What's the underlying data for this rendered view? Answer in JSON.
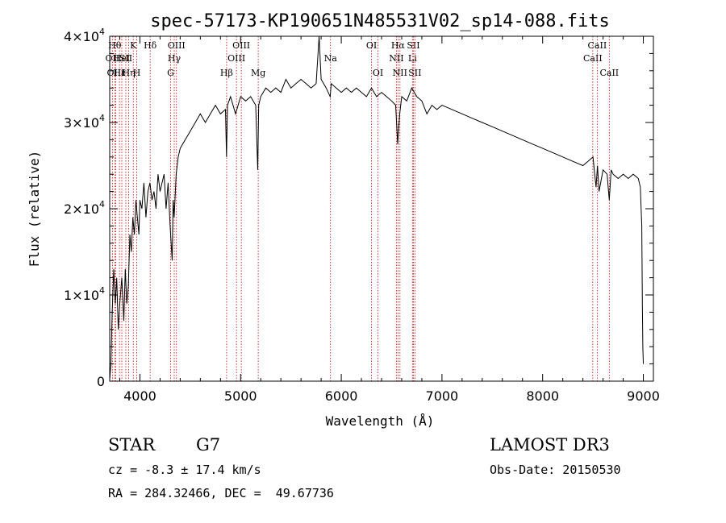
{
  "chart_data": {
    "type": "line",
    "title": "spec-57173-KP190651N485531V02_sp14-088.fits",
    "xlabel": "Wavelength (Å)",
    "ylabel": "Flux (relative)",
    "xlim": [
      3700,
      9100
    ],
    "ylim": [
      0,
      40000
    ],
    "x_ticks": [
      4000,
      5000,
      6000,
      7000,
      8000,
      9000
    ],
    "x_tick_labels": [
      "4000",
      "5000",
      "6000",
      "7000",
      "8000",
      "9000"
    ],
    "y_ticks": [
      0,
      10000,
      20000,
      30000,
      40000
    ],
    "y_tick_labels": [
      {
        "base": "0",
        "exp": ""
      },
      {
        "base": "1×10",
        "exp": "4"
      },
      {
        "base": "2×10",
        "exp": "4"
      },
      {
        "base": "3×10",
        "exp": "4"
      },
      {
        "base": "4×10",
        "exp": "4"
      }
    ],
    "grid": false,
    "line_color": "#000000",
    "marker_color": "#cc0000",
    "series": [
      {
        "name": "spectrum",
        "x": [
          3700,
          3712,
          3725,
          3740,
          3755,
          3770,
          3785,
          3800,
          3820,
          3840,
          3855,
          3870,
          3885,
          3900,
          3915,
          3930,
          3945,
          3960,
          3975,
          3990,
          4000,
          4020,
          4040,
          4060,
          4080,
          4100,
          4120,
          4140,
          4160,
          4180,
          4200,
          4220,
          4240,
          4260,
          4280,
          4300,
          4320,
          4330,
          4340,
          4360,
          4380,
          4400,
          4450,
          4500,
          4550,
          4600,
          4650,
          4700,
          4750,
          4800,
          4850,
          4860,
          4870,
          4900,
          4950,
          5000,
          5050,
          5100,
          5150,
          5170,
          5180,
          5200,
          5250,
          5300,
          5350,
          5400,
          5450,
          5500,
          5550,
          5600,
          5650,
          5700,
          5750,
          5780,
          5800,
          5850,
          5890,
          5900,
          5950,
          6000,
          6050,
          6100,
          6150,
          6200,
          6250,
          6300,
          6350,
          6400,
          6450,
          6500,
          6540,
          6560,
          6580,
          6600,
          6650,
          6700,
          6750,
          6800,
          6850,
          6900,
          6950,
          7000,
          7100,
          7200,
          7300,
          7400,
          7500,
          7600,
          7700,
          7800,
          7900,
          8000,
          8100,
          8200,
          8300,
          8400,
          8450,
          8500,
          8530,
          8545,
          8560,
          8600,
          8640,
          8662,
          8680,
          8700,
          8750,
          8800,
          8850,
          8900,
          8950,
          8970,
          8985,
          8990,
          8995,
          9000
        ],
        "y": [
          200,
          2000,
          8000,
          13000,
          9000,
          12000,
          6000,
          9000,
          12000,
          7000,
          13000,
          9000,
          11000,
          17000,
          15000,
          19000,
          17000,
          21000,
          19000,
          17000,
          21000,
          20000,
          23000,
          19000,
          22000,
          23000,
          21000,
          22000,
          20000,
          24000,
          22000,
          23000,
          24000,
          20000,
          23000,
          18000,
          14000,
          21000,
          19000,
          24000,
          26000,
          27000,
          28000,
          29000,
          30000,
          31000,
          30000,
          31000,
          32000,
          31000,
          31500,
          26000,
          32000,
          33000,
          31000,
          33000,
          32500,
          33000,
          32000,
          24500,
          32000,
          33000,
          34000,
          33500,
          34000,
          33500,
          35000,
          34000,
          34500,
          35000,
          34500,
          34000,
          34500,
          40000,
          35000,
          34000,
          33000,
          34500,
          34000,
          33500,
          34000,
          33500,
          34000,
          33500,
          33000,
          34000,
          33000,
          33500,
          33000,
          32500,
          32000,
          27500,
          31000,
          33000,
          32500,
          34000,
          33000,
          32500,
          31000,
          32000,
          31500,
          32000,
          31500,
          31000,
          30500,
          30000,
          29500,
          29000,
          28500,
          28000,
          27500,
          27000,
          26500,
          26000,
          25500,
          25000,
          25500,
          26000,
          22500,
          25000,
          22000,
          24500,
          24000,
          21000,
          24500,
          24000,
          23500,
          24000,
          23500,
          24000,
          23500,
          22500,
          18000,
          9000,
          4000,
          2000
        ]
      }
    ],
    "markers": [
      {
        "wl": 3727,
        "label": "OII",
        "row": 2
      },
      {
        "wl": 3750,
        "label": "Hθ",
        "row": 1
      },
      {
        "wl": 3760,
        "label": "OIII",
        "row": 3
      },
      {
        "wl": 3797,
        "label": "Hε",
        "row": 3
      },
      {
        "wl": 3820,
        "label": "HeI",
        "row": 2
      },
      {
        "wl": 3860,
        "label": "SII",
        "row": 2
      },
      {
        "wl": 3889,
        "label": "Hη",
        "row": 3
      },
      {
        "wl": 3934,
        "label": "K",
        "row": 1
      },
      {
        "wl": 3969,
        "label": "H",
        "row": 3
      },
      {
        "wl": 4102,
        "label": "Hδ",
        "row": 1
      },
      {
        "wl": 4305,
        "label": "G",
        "row": 3
      },
      {
        "wl": 4341,
        "label": "Hγ",
        "row": 2
      },
      {
        "wl": 4363,
        "label": "OIII",
        "row": 1
      },
      {
        "wl": 4861,
        "label": "Hβ",
        "row": 3
      },
      {
        "wl": 4959,
        "label": "OIII",
        "row": 2
      },
      {
        "wl": 5007,
        "label": "OIII",
        "row": 1
      },
      {
        "wl": 5175,
        "label": "Mg",
        "row": 3
      },
      {
        "wl": 5893,
        "label": "Na",
        "row": 2
      },
      {
        "wl": 6300,
        "label": "OI",
        "row": 1
      },
      {
        "wl": 6364,
        "label": "OI",
        "row": 3
      },
      {
        "wl": 6548,
        "label": "NII",
        "row": 2
      },
      {
        "wl": 6563,
        "label": "Hα",
        "row": 1
      },
      {
        "wl": 6583,
        "label": "NII",
        "row": 3
      },
      {
        "wl": 6707,
        "label": "Li",
        "row": 2
      },
      {
        "wl": 6716,
        "label": "SII",
        "row": 1
      },
      {
        "wl": 6731,
        "label": "SII",
        "row": 3
      },
      {
        "wl": 8498,
        "label": "CaII",
        "row": 2
      },
      {
        "wl": 8542,
        "label": "CaII",
        "row": 1
      },
      {
        "wl": 8662,
        "label": "CaII",
        "row": 3
      }
    ]
  },
  "info": {
    "class_label": "STAR",
    "subclass": "G7",
    "cz_text": "cz = -8.3 ± 17.4 km/s",
    "coords_text": "RA = 284.32466, DEC =  49.67736",
    "survey": "LAMOST DR3",
    "obs_date_text": "Obs-Date: 20150530"
  }
}
